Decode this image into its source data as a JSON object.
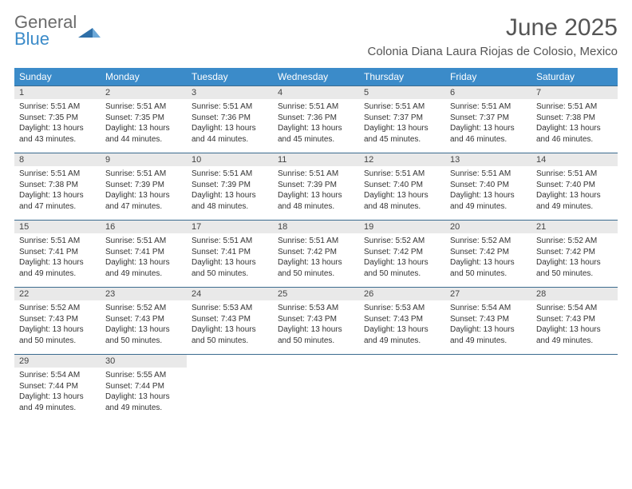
{
  "brand": {
    "name_a": "General",
    "name_b": "Blue"
  },
  "title": {
    "month": "June 2025",
    "location": "Colonia Diana Laura Riojas de Colosio, Mexico"
  },
  "colors": {
    "header_bg": "#3b8bc9",
    "daynum_bg": "#e9e9e9",
    "border": "#3b6b8f"
  },
  "weekdays": [
    "Sunday",
    "Monday",
    "Tuesday",
    "Wednesday",
    "Thursday",
    "Friday",
    "Saturday"
  ],
  "weeks": [
    [
      {
        "n": "1",
        "sr": "5:51 AM",
        "ss": "7:35 PM",
        "dl": "13 hours and 43 minutes."
      },
      {
        "n": "2",
        "sr": "5:51 AM",
        "ss": "7:35 PM",
        "dl": "13 hours and 44 minutes."
      },
      {
        "n": "3",
        "sr": "5:51 AM",
        "ss": "7:36 PM",
        "dl": "13 hours and 44 minutes."
      },
      {
        "n": "4",
        "sr": "5:51 AM",
        "ss": "7:36 PM",
        "dl": "13 hours and 45 minutes."
      },
      {
        "n": "5",
        "sr": "5:51 AM",
        "ss": "7:37 PM",
        "dl": "13 hours and 45 minutes."
      },
      {
        "n": "6",
        "sr": "5:51 AM",
        "ss": "7:37 PM",
        "dl": "13 hours and 46 minutes."
      },
      {
        "n": "7",
        "sr": "5:51 AM",
        "ss": "7:38 PM",
        "dl": "13 hours and 46 minutes."
      }
    ],
    [
      {
        "n": "8",
        "sr": "5:51 AM",
        "ss": "7:38 PM",
        "dl": "13 hours and 47 minutes."
      },
      {
        "n": "9",
        "sr": "5:51 AM",
        "ss": "7:39 PM",
        "dl": "13 hours and 47 minutes."
      },
      {
        "n": "10",
        "sr": "5:51 AM",
        "ss": "7:39 PM",
        "dl": "13 hours and 48 minutes."
      },
      {
        "n": "11",
        "sr": "5:51 AM",
        "ss": "7:39 PM",
        "dl": "13 hours and 48 minutes."
      },
      {
        "n": "12",
        "sr": "5:51 AM",
        "ss": "7:40 PM",
        "dl": "13 hours and 48 minutes."
      },
      {
        "n": "13",
        "sr": "5:51 AM",
        "ss": "7:40 PM",
        "dl": "13 hours and 49 minutes."
      },
      {
        "n": "14",
        "sr": "5:51 AM",
        "ss": "7:40 PM",
        "dl": "13 hours and 49 minutes."
      }
    ],
    [
      {
        "n": "15",
        "sr": "5:51 AM",
        "ss": "7:41 PM",
        "dl": "13 hours and 49 minutes."
      },
      {
        "n": "16",
        "sr": "5:51 AM",
        "ss": "7:41 PM",
        "dl": "13 hours and 49 minutes."
      },
      {
        "n": "17",
        "sr": "5:51 AM",
        "ss": "7:41 PM",
        "dl": "13 hours and 50 minutes."
      },
      {
        "n": "18",
        "sr": "5:51 AM",
        "ss": "7:42 PM",
        "dl": "13 hours and 50 minutes."
      },
      {
        "n": "19",
        "sr": "5:52 AM",
        "ss": "7:42 PM",
        "dl": "13 hours and 50 minutes."
      },
      {
        "n": "20",
        "sr": "5:52 AM",
        "ss": "7:42 PM",
        "dl": "13 hours and 50 minutes."
      },
      {
        "n": "21",
        "sr": "5:52 AM",
        "ss": "7:42 PM",
        "dl": "13 hours and 50 minutes."
      }
    ],
    [
      {
        "n": "22",
        "sr": "5:52 AM",
        "ss": "7:43 PM",
        "dl": "13 hours and 50 minutes."
      },
      {
        "n": "23",
        "sr": "5:52 AM",
        "ss": "7:43 PM",
        "dl": "13 hours and 50 minutes."
      },
      {
        "n": "24",
        "sr": "5:53 AM",
        "ss": "7:43 PM",
        "dl": "13 hours and 50 minutes."
      },
      {
        "n": "25",
        "sr": "5:53 AM",
        "ss": "7:43 PM",
        "dl": "13 hours and 50 minutes."
      },
      {
        "n": "26",
        "sr": "5:53 AM",
        "ss": "7:43 PM",
        "dl": "13 hours and 49 minutes."
      },
      {
        "n": "27",
        "sr": "5:54 AM",
        "ss": "7:43 PM",
        "dl": "13 hours and 49 minutes."
      },
      {
        "n": "28",
        "sr": "5:54 AM",
        "ss": "7:43 PM",
        "dl": "13 hours and 49 minutes."
      }
    ],
    [
      {
        "n": "29",
        "sr": "5:54 AM",
        "ss": "7:44 PM",
        "dl": "13 hours and 49 minutes."
      },
      {
        "n": "30",
        "sr": "5:55 AM",
        "ss": "7:44 PM",
        "dl": "13 hours and 49 minutes."
      },
      null,
      null,
      null,
      null,
      null
    ]
  ],
  "labels": {
    "sunrise": "Sunrise: ",
    "sunset": "Sunset: ",
    "daylight": "Daylight: "
  }
}
